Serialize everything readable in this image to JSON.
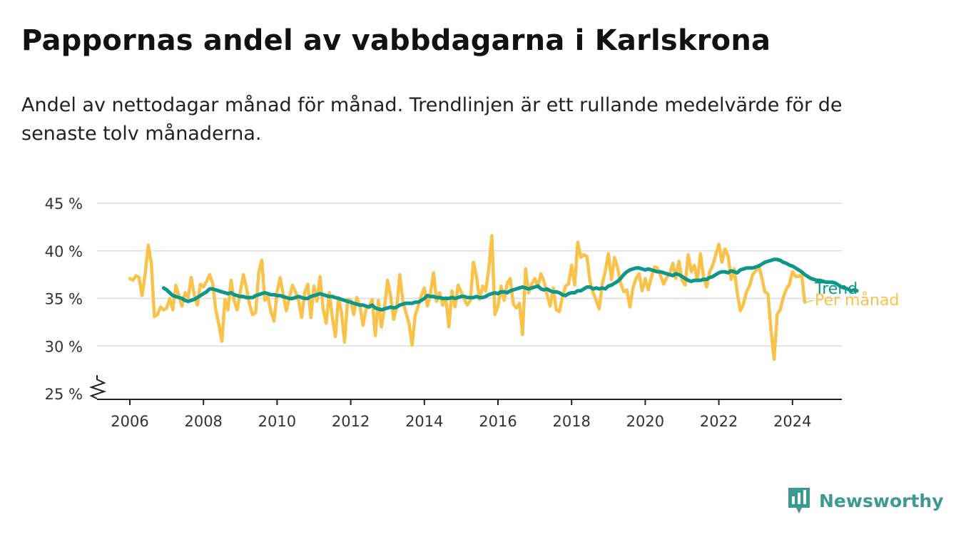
{
  "header": {
    "title": "Pappornas andel av vabbdagarna i Karlskrona",
    "subtitle": "Andel av nettodagar månad för månad. Trendlinjen är ett rullande medelvärde för de senaste tolv månaderna."
  },
  "brand": {
    "name": "Newsworthy",
    "icon": "newsworthy-logo-icon"
  },
  "colors": {
    "monthly": "#f9c34b",
    "trend": "#0e9688",
    "grid": "#dcdcdc",
    "axis": "#222222"
  },
  "chart_data": {
    "type": "line",
    "title": "Pappornas andel av vabbdagarna i Karlskrona",
    "xlabel": "",
    "ylabel": "",
    "xlim": [
      2005.6,
      2025.0
    ],
    "ylim": [
      25,
      45
    ],
    "axis_break": true,
    "x_ticks": [
      2006,
      2008,
      2010,
      2012,
      2014,
      2016,
      2018,
      2020,
      2022,
      2024
    ],
    "x_tick_labels": [
      "2006",
      "2008",
      "2010",
      "2012",
      "2014",
      "2016",
      "2018",
      "2020",
      "2022",
      "2024"
    ],
    "y_ticks": [
      25,
      30,
      35,
      40,
      45
    ],
    "y_tick_labels": [
      "25 %",
      "30 %",
      "35 %",
      "40 %",
      "45 %"
    ],
    "grid": true,
    "series": [
      {
        "name": "Per månad",
        "x_start": 2006.0,
        "x_step": 0.08333,
        "values": [
          37.1,
          36.9,
          37.4,
          37.2,
          35.3,
          37.6,
          40.6,
          38.7,
          33.1,
          33.3,
          34.1,
          33.8,
          34.0,
          35.0,
          33.8,
          36.4,
          35.3,
          34.2,
          35.6,
          35.1,
          37.2,
          35.4,
          34.3,
          36.5,
          36.2,
          36.8,
          37.5,
          36.6,
          33.8,
          32.3,
          30.5,
          34.9,
          33.8,
          36.9,
          34.7,
          33.8,
          35.7,
          37.5,
          36.1,
          34.4,
          33.3,
          33.5,
          37.7,
          39.0,
          34.8,
          35.2,
          33.6,
          32.6,
          35.7,
          37.2,
          35.4,
          33.7,
          35.1,
          36.4,
          35.7,
          34.8,
          33.0,
          35.6,
          36.5,
          33.0,
          36.3,
          34.7,
          37.3,
          33.9,
          32.4,
          35.6,
          33.0,
          31.0,
          35.1,
          33.5,
          30.4,
          34.9,
          34.8,
          33.3,
          35.1,
          34.2,
          32.2,
          33.9,
          34.2,
          34.9,
          31.1,
          34.8,
          32.0,
          34.0,
          36.9,
          35.3,
          32.8,
          34.1,
          37.5,
          34.7,
          33.5,
          32.4,
          30.1,
          33.2,
          34.2,
          35.3,
          36.1,
          34.2,
          35.6,
          37.7,
          34.7,
          35.6,
          34.3,
          35.1,
          32.0,
          35.8,
          34.1,
          36.4,
          35.7,
          34.9,
          34.3,
          34.8,
          38.8,
          37.3,
          34.9,
          36.3,
          35.8,
          38.1,
          41.6,
          33.3,
          34.2,
          36.3,
          34.8,
          36.6,
          37.1,
          34.4,
          34.0,
          34.5,
          31.2,
          38.1,
          35.6,
          36.5,
          37.1,
          36.2,
          37.6,
          36.8,
          35.4,
          34.2,
          36.1,
          33.8,
          33.6,
          35.1,
          36.3,
          36.5,
          38.5,
          36.4,
          40.9,
          39.3,
          39.6,
          39.4,
          36.8,
          35.6,
          34.8,
          33.9,
          36.5,
          37.9,
          39.7,
          37.0,
          39.3,
          38.2,
          36.6,
          35.7,
          35.9,
          34.1,
          36.1,
          37.1,
          37.6,
          35.8,
          37.1,
          35.9,
          37.2,
          38.3,
          38.2,
          37.4,
          36.5,
          37.2,
          37.6,
          38.7,
          37.1,
          38.9,
          36.9,
          36.4,
          39.6,
          37.8,
          38.5,
          36.9,
          39.7,
          37.2,
          36.2,
          37.8,
          38.5,
          39.6,
          40.7,
          38.8,
          40.2,
          39.5,
          37.0,
          38.1,
          35.6,
          33.7,
          34.4,
          35.7,
          36.3,
          37.5,
          37.9,
          38.5,
          37.2,
          35.7,
          35.5,
          31.7,
          28.6,
          33.3,
          33.8,
          35.1,
          36.0,
          36.5,
          37.8,
          37.3,
          37.3,
          37.5,
          34.6
        ]
      },
      {
        "name": "Trend",
        "x_start": 2006.917,
        "x_step": 0.08333,
        "values": [
          36.1,
          35.9,
          35.6,
          35.3,
          35.2,
          35.1,
          35.0,
          34.8,
          34.7,
          34.8,
          34.9,
          35.1,
          35.3,
          35.5,
          35.7,
          36.0,
          36.0,
          35.9,
          35.8,
          35.7,
          35.6,
          35.5,
          35.6,
          35.4,
          35.3,
          35.2,
          35.2,
          35.1,
          35.1,
          35.1,
          35.3,
          35.4,
          35.5,
          35.6,
          35.5,
          35.4,
          35.4,
          35.3,
          35.3,
          35.2,
          35.1,
          35.0,
          35.0,
          35.1,
          35.2,
          35.1,
          35.0,
          35.0,
          35.2,
          35.3,
          35.4,
          35.5,
          35.4,
          35.3,
          35.2,
          35.2,
          35.1,
          35.0,
          34.9,
          34.8,
          34.7,
          34.6,
          34.5,
          34.4,
          34.3,
          34.3,
          34.2,
          34.1,
          34.3,
          34.0,
          33.9,
          33.8,
          33.9,
          34.0,
          34.1,
          34.0,
          34.1,
          34.3,
          34.4,
          34.5,
          34.5,
          34.5,
          34.6,
          34.6,
          34.8,
          35.0,
          35.3,
          35.2,
          35.2,
          35.1,
          35.1,
          35.0,
          35.0,
          35.0,
          35.1,
          35.0,
          35.1,
          35.2,
          35.2,
          35.1,
          35.1,
          35.1,
          35.2,
          35.1,
          35.1,
          35.2,
          35.4,
          35.5,
          35.6,
          35.5,
          35.7,
          35.7,
          35.6,
          35.8,
          35.9,
          36.0,
          36.1,
          36.2,
          36.1,
          36.0,
          36.1,
          36.2,
          36.3,
          36.0,
          35.9,
          36.0,
          35.8,
          35.7,
          35.7,
          35.6,
          35.4,
          35.3,
          35.5,
          35.6,
          35.6,
          35.8,
          35.8,
          36.0,
          36.2,
          36.2,
          36.0,
          36.1,
          36.0,
          36.1,
          36.0,
          36.3,
          36.4,
          36.6,
          36.8,
          37.1,
          37.5,
          37.8,
          38.0,
          38.1,
          38.2,
          38.2,
          38.1,
          38.0,
          38.1,
          38.0,
          37.9,
          37.8,
          37.8,
          37.7,
          37.6,
          37.5,
          37.4,
          37.6,
          37.5,
          37.3,
          37.1,
          36.9,
          36.8,
          36.9,
          36.9,
          36.9,
          37.0,
          37.0,
          37.2,
          37.3,
          37.5,
          37.7,
          37.8,
          37.8,
          37.7,
          37.9,
          37.8,
          37.7,
          38.0,
          38.1,
          38.2,
          38.2,
          38.2,
          38.3,
          38.4,
          38.6,
          38.8,
          38.9,
          39.0,
          39.1,
          39.1,
          39.0,
          38.8,
          38.7,
          38.5,
          38.4,
          38.2,
          38.0,
          37.8,
          37.5,
          37.3,
          37.1,
          37.0,
          36.9,
          36.9,
          36.8,
          36.7,
          36.7,
          36.7,
          36.6,
          36.4,
          36.2,
          36.1,
          36.0,
          35.8,
          35.9,
          35.8
        ]
      }
    ]
  }
}
